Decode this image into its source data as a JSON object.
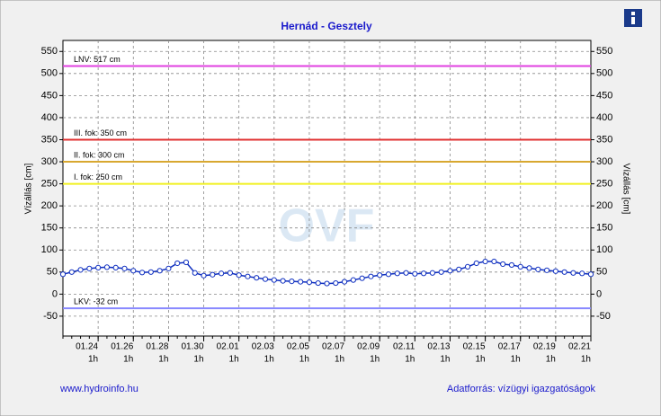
{
  "chart_data": {
    "type": "line",
    "title": "Hernád - Gesztely",
    "ylabel": "Vízállás [cm]",
    "watermark": "OVF",
    "ylim": [
      -95,
      575
    ],
    "yticks": [
      -50,
      0,
      50,
      100,
      150,
      200,
      250,
      300,
      350,
      400,
      450,
      500,
      550
    ],
    "xticks": [
      "01.24",
      "01.26",
      "01.28",
      "01.30",
      "02.01",
      "02.03",
      "02.05",
      "02.07",
      "02.09",
      "02.11",
      "02.13",
      "02.15",
      "02.17",
      "02.19",
      "02.21"
    ],
    "xtick_sublabel": "1h",
    "grid": true,
    "thresholds": [
      {
        "label": "LNV: 517 cm",
        "value": 517,
        "color": "#e040e0"
      },
      {
        "label": "III. fok: 350 cm",
        "value": 350,
        "color": "#e03030"
      },
      {
        "label": "II. fok: 300 cm",
        "value": 300,
        "color": "#d8a830"
      },
      {
        "label": "I. fok: 250 cm",
        "value": 250,
        "color": "#f0f020"
      },
      {
        "label": "LKV: -32 cm",
        "value": -32,
        "color": "#8888ff"
      }
    ],
    "series": [
      {
        "color": "#1030c0",
        "values": [
          45,
          50,
          55,
          58,
          60,
          61,
          60,
          58,
          53,
          49,
          50,
          53,
          58,
          70,
          72,
          48,
          42,
          44,
          47,
          48,
          43,
          40,
          37,
          34,
          32,
          30,
          29,
          28,
          27,
          25,
          24,
          25,
          28,
          32,
          36,
          40,
          43,
          45,
          47,
          48,
          46,
          47,
          48,
          50,
          53,
          56,
          62,
          70,
          74,
          74,
          68,
          66,
          62,
          59,
          56,
          54,
          52,
          50,
          48,
          47,
          45
        ]
      }
    ],
    "footer_left": "www.hydroinfo.hu",
    "footer_right": "Adatforrás: vízügyi igazgatóságok"
  }
}
